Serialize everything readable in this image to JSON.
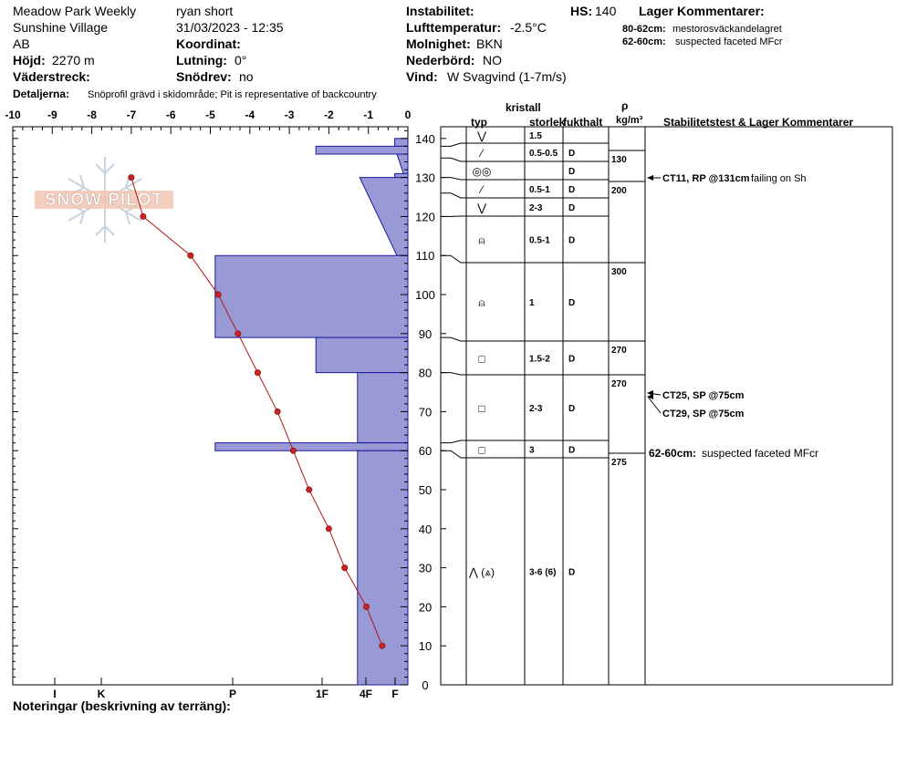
{
  "header": {
    "location": "Meadow Park Weekly",
    "area": "Sunshine Village",
    "region": "AB",
    "elevation_label": "Höjd:",
    "elevation_value": "2270 m",
    "aspect_label": "Väderstreck:",
    "observer": "ryan short",
    "datetime": "31/03/2023 - 12:35",
    "coordinate_label": "Koordinat:",
    "slope_label": "Lutning:",
    "slope_value": "0°",
    "drift_label": "Snödrev:",
    "drift_value": "no",
    "instability_label": "Instabilitet:",
    "air_temp_label": "Lufttemperatur:",
    "air_temp_value": "-2.5°C",
    "cloud_label": "Molnighet:",
    "cloud_value": "BKN",
    "precip_label": "Nederbörd:",
    "precip_value": "NO",
    "wind_label": "Vind:",
    "wind_value": "W Svagvind (1-7m/s)",
    "hs_label": "HS:",
    "hs_value": "140",
    "layer_comments_label": "Lager Kommentarer:",
    "layer_comments": [
      {
        "depth": "80-62cm:",
        "text": "mestorosväckandelagret"
      },
      {
        "depth": "62-60cm:",
        "text": "suspected faceted MFcr"
      }
    ],
    "details_label": "Detaljerna:",
    "details_value": "Snöprofil grävd i skidområde;  Pit is representative of backcountry"
  },
  "footer": {
    "notes_label": "Noteringar (beskrivning av terräng):"
  },
  "logo": {
    "text": "SNOW PILOT"
  },
  "table_headers": {
    "crystal": "kristall",
    "type": "typ",
    "size": "storlek",
    "moisture": "fukthalt",
    "rho": "ρ",
    "rho_unit": "kg/m³",
    "stability": "Stabilitetstest & Lager Kommentarer"
  },
  "colors": {
    "hardness_fill": "#9999d5",
    "hardness_stroke": "#1a1aa0",
    "temp_line": "#b01818",
    "temp_point": "#cc2222"
  },
  "chart_data": {
    "type": "snow-profile",
    "temperature_axis": {
      "range": [
        -10,
        0
      ],
      "ticks": [
        "-10",
        "-9",
        "-8",
        "-7",
        "-6",
        "-5",
        "-4",
        "-3",
        "-2",
        "-1",
        "0"
      ]
    },
    "height_axis": {
      "range": [
        0,
        143
      ],
      "ticks": [
        "140",
        "130",
        "120",
        "110",
        "100",
        "90",
        "80",
        "70",
        "60",
        "50",
        "40",
        "30",
        "20",
        "10",
        "0"
      ]
    },
    "hardness_axis": [
      "I",
      "K",
      "P",
      "1F",
      "4F",
      "F"
    ],
    "temperature_profile": [
      {
        "height": 130,
        "temp": -7.0
      },
      {
        "height": 120,
        "temp": -6.7
      },
      {
        "height": 110,
        "temp": -5.5
      },
      {
        "height": 100,
        "temp": -4.8
      },
      {
        "height": 90,
        "temp": -4.3
      },
      {
        "height": 80,
        "temp": -3.8
      },
      {
        "height": 70,
        "temp": -3.3
      },
      {
        "height": 60,
        "temp": -2.9
      },
      {
        "height": 50,
        "temp": -2.5
      },
      {
        "height": 40,
        "temp": -2.0
      },
      {
        "height": 30,
        "temp": -1.6
      },
      {
        "height": 20,
        "temp": -1.05
      },
      {
        "height": 10,
        "temp": -0.65
      }
    ],
    "hardness_layers": [
      {
        "top": 140,
        "bottom": 138,
        "hardness": 0.3
      },
      {
        "top": 138,
        "bottom": 136,
        "hardness": 2.1
      },
      {
        "top": 136,
        "bottom": 131,
        "hardness": 0.25,
        "hardness_bottom": 0.1
      },
      {
        "top": 131,
        "bottom": 130,
        "hardness": 0.3
      },
      {
        "top": 130,
        "bottom": 110,
        "hardness": 1.1,
        "hardness_bottom": 0.25
      },
      {
        "top": 110,
        "bottom": 89,
        "hardness": 4.4
      },
      {
        "top": 89,
        "bottom": 80,
        "hardness": 2.1
      },
      {
        "top": 80,
        "bottom": 62,
        "hardness": 1.15
      },
      {
        "top": 62,
        "bottom": 60,
        "hardness": 4.4
      },
      {
        "top": 60,
        "bottom": 0,
        "hardness": 1.15
      }
    ],
    "layers": [
      {
        "top": 140,
        "bottom": 138,
        "type": "⋁",
        "size": "1.5",
        "moisture": ""
      },
      {
        "top": 138,
        "bottom": 135,
        "type": "⁄",
        "size": "0.5-0.5",
        "moisture": "D"
      },
      {
        "top": 135,
        "bottom": 130,
        "type": "◎◎",
        "size": "",
        "moisture": "D"
      },
      {
        "top": 130,
        "bottom": 126,
        "type": "⁄",
        "size": "0.5-1",
        "moisture": "D"
      },
      {
        "top": 126,
        "bottom": 120,
        "type": "⋁",
        "size": "2-3",
        "moisture": "D"
      },
      {
        "top": 120,
        "bottom": 110,
        "type": "⍝",
        "size": "0.5-1",
        "moisture": "D"
      },
      {
        "top": 110,
        "bottom": 89,
        "type": "⍝",
        "size": "1",
        "moisture": "D"
      },
      {
        "top": 89,
        "bottom": 80,
        "type": "□",
        "size": "1.5-2",
        "moisture": "D"
      },
      {
        "top": 80,
        "bottom": 62,
        "type": "□",
        "size": "2-3",
        "moisture": "D"
      },
      {
        "top": 62,
        "bottom": 60,
        "type": "□",
        "size": "3",
        "moisture": "D"
      },
      {
        "top": 60,
        "bottom": 0,
        "type": "⋀ (⩓)",
        "size": "3-6 (6)",
        "moisture": "D"
      }
    ],
    "densities": [
      {
        "height": 137,
        "value": "130"
      },
      {
        "height": 130,
        "value": "200"
      },
      {
        "height": 109,
        "value": "300"
      },
      {
        "height": 88,
        "value": "270"
      },
      {
        "height": 79,
        "value": "270"
      },
      {
        "height": 58,
        "value": "275"
      }
    ],
    "tests": [
      {
        "height": 131,
        "label": "CT11, RP @131cm",
        "note": "failing on Sh"
      },
      {
        "height": 75,
        "label": "CT25, SP @75cm",
        "note": ""
      },
      {
        "height": 75,
        "label": "CT29, SP @75cm",
        "note": ""
      }
    ],
    "comments": [
      {
        "height": 61,
        "depth": "62-60cm:",
        "text": "suspected faceted MFcr"
      }
    ]
  }
}
